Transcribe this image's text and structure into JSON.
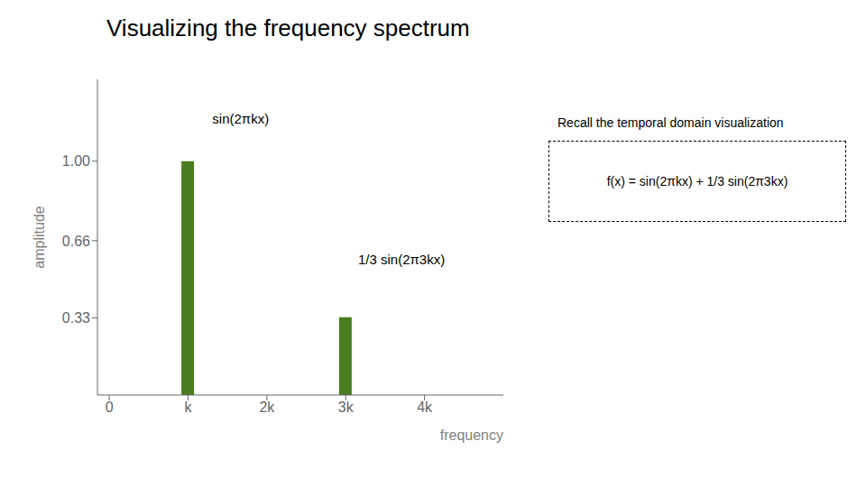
{
  "chart_data": {
    "type": "bar",
    "title": "Visualizing the frequency spectrum",
    "x_label": "frequency",
    "y_label": "amplitude",
    "x": [
      1,
      3
    ],
    "values": [
      1.0,
      0.333
    ],
    "color": "#4a7c20",
    "xlim": [
      -0.15,
      5.0
    ],
    "ylim": [
      0,
      1.35
    ],
    "xticks": [
      0,
      {
        "value": 1,
        "label": "k"
      },
      {
        "value": 2,
        "label": "2k"
      },
      {
        "value": 3,
        "label": "3k"
      },
      {
        "value": 4,
        "label": "4k"
      }
    ],
    "yticks": [
      0.33,
      0.66,
      {
        "value": 1.0,
        "label": "1.00"
      }
    ],
    "grid": false,
    "annotations": [
      {
        "text": "sin(2πkx)",
        "x": 1.25,
        "y": 1.18
      },
      {
        "text": "1/3 sin(2π3kx)",
        "x": 3.1,
        "y": 0.58
      }
    ],
    "inset": {
      "title": "Recall the temporal domain visualization",
      "text": "f(x) = sin(2πkx) + 1/3 sin(2π3kx)"
    }
  }
}
